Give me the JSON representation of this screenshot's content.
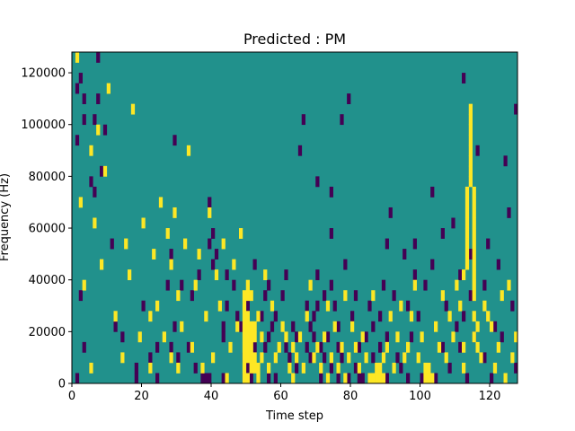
{
  "chart_data": {
    "type": "heatmap",
    "title": "Predicted : PM",
    "xlabel": "Time step",
    "ylabel": "Frequency (Hz)",
    "xlim": [
      0,
      128
    ],
    "ylim": [
      0,
      128000
    ],
    "x_ticks": [
      0,
      20,
      40,
      60,
      80,
      100,
      120
    ],
    "y_ticks": [
      0,
      20000,
      40000,
      60000,
      80000,
      100000,
      120000
    ],
    "x_tick_labels": [
      "0",
      "20",
      "40",
      "60",
      "80",
      "100",
      "120"
    ],
    "y_tick_labels": [
      "0",
      "20000",
      "40000",
      "60000",
      "80000",
      "100000",
      "120000"
    ],
    "n_time_bins": 128,
    "n_freq_bins": 32,
    "value_levels": [
      0,
      1,
      2
    ],
    "background_value": 1,
    "colors": {
      "0": "#440154",
      "1": "#21918c",
      "2": "#fde725"
    },
    "low_cells": [
      [
        1,
        0
      ],
      [
        2,
        8
      ],
      [
        3,
        3
      ],
      [
        1,
        23
      ],
      [
        1,
        28
      ],
      [
        2,
        29
      ],
      [
        3,
        27
      ],
      [
        3,
        25
      ],
      [
        6,
        25
      ],
      [
        7,
        31
      ],
      [
        7,
        27
      ],
      [
        5,
        19
      ],
      [
        6,
        18
      ],
      [
        8,
        20
      ],
      [
        9,
        24
      ],
      [
        11,
        13
      ],
      [
        12,
        5
      ],
      [
        14,
        4
      ],
      [
        18,
        0
      ],
      [
        18,
        1
      ],
      [
        20,
        7
      ],
      [
        22,
        2
      ],
      [
        24,
        0
      ],
      [
        24,
        3
      ],
      [
        27,
        9
      ],
      [
        28,
        3
      ],
      [
        28,
        12
      ],
      [
        29,
        23
      ],
      [
        29,
        5
      ],
      [
        30,
        2
      ],
      [
        31,
        9
      ],
      [
        33,
        3
      ],
      [
        34,
        8
      ],
      [
        35,
        1
      ],
      [
        36,
        10
      ],
      [
        37,
        0
      ],
      [
        38,
        0
      ],
      [
        39,
        0
      ],
      [
        39,
        13
      ],
      [
        39,
        17
      ],
      [
        40,
        14
      ],
      [
        40,
        11
      ],
      [
        41,
        12
      ],
      [
        43,
        5
      ],
      [
        43,
        0
      ],
      [
        43,
        4
      ],
      [
        44,
        7
      ],
      [
        44,
        10
      ],
      [
        46,
        9
      ],
      [
        47,
        6
      ],
      [
        48,
        5
      ],
      [
        49,
        2
      ],
      [
        49,
        0
      ],
      [
        50,
        7
      ],
      [
        50,
        1
      ],
      [
        51,
        0
      ],
      [
        52,
        3
      ],
      [
        52,
        11
      ],
      [
        54,
        6
      ],
      [
        55,
        8
      ],
      [
        55,
        3
      ],
      [
        56,
        9
      ],
      [
        56,
        4
      ],
      [
        56,
        0
      ],
      [
        57,
        5
      ],
      [
        58,
        6
      ],
      [
        58,
        0
      ],
      [
        60,
        8
      ],
      [
        61,
        3
      ],
      [
        61,
        10
      ],
      [
        62,
        2
      ],
      [
        63,
        5
      ],
      [
        64,
        1
      ],
      [
        64,
        4
      ],
      [
        65,
        22
      ],
      [
        66,
        25
      ],
      [
        67,
        3
      ],
      [
        67,
        7
      ],
      [
        68,
        2
      ],
      [
        68,
        5
      ],
      [
        69,
        6
      ],
      [
        69,
        4
      ],
      [
        70,
        7
      ],
      [
        70,
        10
      ],
      [
        70,
        19
      ],
      [
        71,
        0
      ],
      [
        71,
        3
      ],
      [
        72,
        8
      ],
      [
        72,
        2
      ],
      [
        73,
        4
      ],
      [
        74,
        1
      ],
      [
        74,
        9
      ],
      [
        74,
        18
      ],
      [
        74,
        14
      ],
      [
        75,
        7
      ],
      [
        76,
        0
      ],
      [
        76,
        3
      ],
      [
        76,
        5
      ],
      [
        77,
        2
      ],
      [
        77,
        25
      ],
      [
        78,
        11
      ],
      [
        79,
        27
      ],
      [
        79,
        0
      ],
      [
        80,
        6
      ],
      [
        81,
        1
      ],
      [
        81,
        8
      ],
      [
        82,
        0
      ],
      [
        82,
        3
      ],
      [
        83,
        0
      ],
      [
        84,
        4
      ],
      [
        85,
        0
      ],
      [
        85,
        7
      ],
      [
        86,
        5
      ],
      [
        86,
        2
      ],
      [
        87,
        0
      ],
      [
        87,
        1
      ],
      [
        88,
        3
      ],
      [
        88,
        6
      ],
      [
        89,
        9
      ],
      [
        90,
        0
      ],
      [
        90,
        4
      ],
      [
        90,
        13
      ],
      [
        91,
        16
      ],
      [
        92,
        8
      ],
      [
        93,
        2
      ],
      [
        94,
        1
      ],
      [
        95,
        12
      ],
      [
        96,
        7
      ],
      [
        96,
        0
      ],
      [
        97,
        4
      ],
      [
        98,
        10
      ],
      [
        98,
        13
      ],
      [
        99,
        6
      ],
      [
        100,
        0
      ],
      [
        101,
        9
      ],
      [
        102,
        1
      ],
      [
        103,
        11
      ],
      [
        103,
        18
      ],
      [
        104,
        0
      ],
      [
        106,
        3
      ],
      [
        106,
        14
      ],
      [
        107,
        7
      ],
      [
        108,
        1
      ],
      [
        109,
        15
      ],
      [
        110,
        5
      ],
      [
        111,
        3
      ],
      [
        111,
        10
      ],
      [
        112,
        29
      ],
      [
        112,
        6
      ],
      [
        113,
        0
      ],
      [
        114,
        8
      ],
      [
        114,
        12
      ],
      [
        115,
        4
      ],
      [
        116,
        22
      ],
      [
        118,
        9
      ],
      [
        118,
        2
      ],
      [
        119,
        13
      ],
      [
        120,
        0
      ],
      [
        121,
        5
      ],
      [
        122,
        11
      ],
      [
        123,
        4
      ],
      [
        124,
        21
      ],
      [
        125,
        16
      ],
      [
        126,
        7
      ],
      [
        127,
        1
      ],
      [
        127,
        26
      ]
    ],
    "high_cells": [
      [
        1,
        31
      ],
      [
        2,
        17
      ],
      [
        3,
        9
      ],
      [
        5,
        1
      ],
      [
        5,
        22
      ],
      [
        6,
        15
      ],
      [
        7,
        24
      ],
      [
        8,
        11
      ],
      [
        9,
        20
      ],
      [
        10,
        28
      ],
      [
        12,
        6
      ],
      [
        14,
        2
      ],
      [
        15,
        13
      ],
      [
        16,
        10
      ],
      [
        17,
        26
      ],
      [
        19,
        4
      ],
      [
        20,
        15
      ],
      [
        22,
        1
      ],
      [
        22,
        6
      ],
      [
        23,
        12
      ],
      [
        24,
        7
      ],
      [
        25,
        17
      ],
      [
        26,
        4
      ],
      [
        27,
        14
      ],
      [
        28,
        2
      ],
      [
        28,
        11
      ],
      [
        29,
        16
      ],
      [
        30,
        1
      ],
      [
        30,
        8
      ],
      [
        31,
        5
      ],
      [
        32,
        13
      ],
      [
        33,
        22
      ],
      [
        34,
        3
      ],
      [
        35,
        9
      ],
      [
        36,
        12
      ],
      [
        37,
        1
      ],
      [
        38,
        6
      ],
      [
        39,
        16
      ],
      [
        40,
        2
      ],
      [
        41,
        10
      ],
      [
        42,
        7
      ],
      [
        43,
        13
      ],
      [
        44,
        0
      ],
      [
        45,
        3
      ],
      [
        46,
        11
      ],
      [
        47,
        5
      ],
      [
        48,
        14
      ],
      [
        49,
        0
      ],
      [
        49,
        1
      ],
      [
        49,
        2
      ],
      [
        49,
        3
      ],
      [
        49,
        4
      ],
      [
        49,
        5
      ],
      [
        49,
        6
      ],
      [
        49,
        7
      ],
      [
        49,
        8
      ],
      [
        50,
        0
      ],
      [
        50,
        2
      ],
      [
        50,
        3
      ],
      [
        50,
        4
      ],
      [
        50,
        5
      ],
      [
        50,
        6
      ],
      [
        50,
        8
      ],
      [
        50,
        9
      ],
      [
        51,
        1
      ],
      [
        51,
        2
      ],
      [
        51,
        3
      ],
      [
        51,
        4
      ],
      [
        51,
        5
      ],
      [
        51,
        8
      ],
      [
        52,
        1
      ],
      [
        52,
        2
      ],
      [
        52,
        4
      ],
      [
        52,
        5
      ],
      [
        53,
        0
      ],
      [
        53,
        1
      ],
      [
        53,
        6
      ],
      [
        54,
        2
      ],
      [
        54,
        4
      ],
      [
        55,
        10
      ],
      [
        56,
        1
      ],
      [
        57,
        7
      ],
      [
        58,
        2
      ],
      [
        59,
        3
      ],
      [
        60,
        5
      ],
      [
        61,
        4
      ],
      [
        62,
        1
      ],
      [
        63,
        0
      ],
      [
        63,
        3
      ],
      [
        64,
        2
      ],
      [
        65,
        4
      ],
      [
        66,
        1
      ],
      [
        67,
        6
      ],
      [
        68,
        9
      ],
      [
        69,
        2
      ],
      [
        70,
        3
      ],
      [
        71,
        1
      ],
      [
        72,
        4
      ],
      [
        73,
        0
      ],
      [
        73,
        7
      ],
      [
        74,
        2
      ],
      [
        75,
        5
      ],
      [
        76,
        1
      ],
      [
        77,
        3
      ],
      [
        78,
        0
      ],
      [
        78,
        8
      ],
      [
        79,
        2
      ],
      [
        80,
        5
      ],
      [
        81,
        3
      ],
      [
        82,
        1
      ],
      [
        83,
        4
      ],
      [
        84,
        2
      ],
      [
        85,
        0
      ],
      [
        86,
        8
      ],
      [
        86,
        0
      ],
      [
        87,
        1
      ],
      [
        87,
        0
      ],
      [
        88,
        0
      ],
      [
        88,
        1
      ],
      [
        89,
        2
      ],
      [
        89,
        0
      ],
      [
        90,
        3
      ],
      [
        91,
        6
      ],
      [
        92,
        1
      ],
      [
        93,
        4
      ],
      [
        94,
        7
      ],
      [
        95,
        2
      ],
      [
        96,
        3
      ],
      [
        97,
        6
      ],
      [
        98,
        9
      ],
      [
        99,
        2
      ],
      [
        100,
        4
      ],
      [
        101,
        0
      ],
      [
        101,
        1
      ],
      [
        102,
        0
      ],
      [
        102,
        1
      ],
      [
        103,
        0
      ],
      [
        104,
        5
      ],
      [
        105,
        3
      ],
      [
        106,
        8
      ],
      [
        107,
        2
      ],
      [
        108,
        6
      ],
      [
        109,
        4
      ],
      [
        110,
        9
      ],
      [
        111,
        7
      ],
      [
        112,
        1
      ],
      [
        112,
        3
      ],
      [
        112,
        10
      ],
      [
        113,
        11
      ],
      [
        113,
        12
      ],
      [
        113,
        13
      ],
      [
        113,
        14
      ],
      [
        113,
        15
      ],
      [
        113,
        16
      ],
      [
        113,
        17
      ],
      [
        113,
        18
      ],
      [
        114,
        19
      ],
      [
        114,
        20
      ],
      [
        114,
        21
      ],
      [
        114,
        22
      ],
      [
        114,
        23
      ],
      [
        114,
        24
      ],
      [
        114,
        25
      ],
      [
        114,
        26
      ],
      [
        115,
        4
      ],
      [
        115,
        6
      ],
      [
        115,
        8
      ],
      [
        115,
        9
      ],
      [
        115,
        10
      ],
      [
        115,
        11
      ],
      [
        115,
        12
      ],
      [
        115,
        13
      ],
      [
        115,
        14
      ],
      [
        115,
        15
      ],
      [
        115,
        16
      ],
      [
        115,
        17
      ],
      [
        115,
        18
      ],
      [
        116,
        3
      ],
      [
        116,
        5
      ],
      [
        117,
        2
      ],
      [
        118,
        7
      ],
      [
        119,
        6
      ],
      [
        120,
        5
      ],
      [
        121,
        1
      ],
      [
        122,
        3
      ],
      [
        123,
        8
      ],
      [
        124,
        0
      ],
      [
        125,
        9
      ],
      [
        126,
        2
      ],
      [
        127,
        4
      ]
    ]
  }
}
